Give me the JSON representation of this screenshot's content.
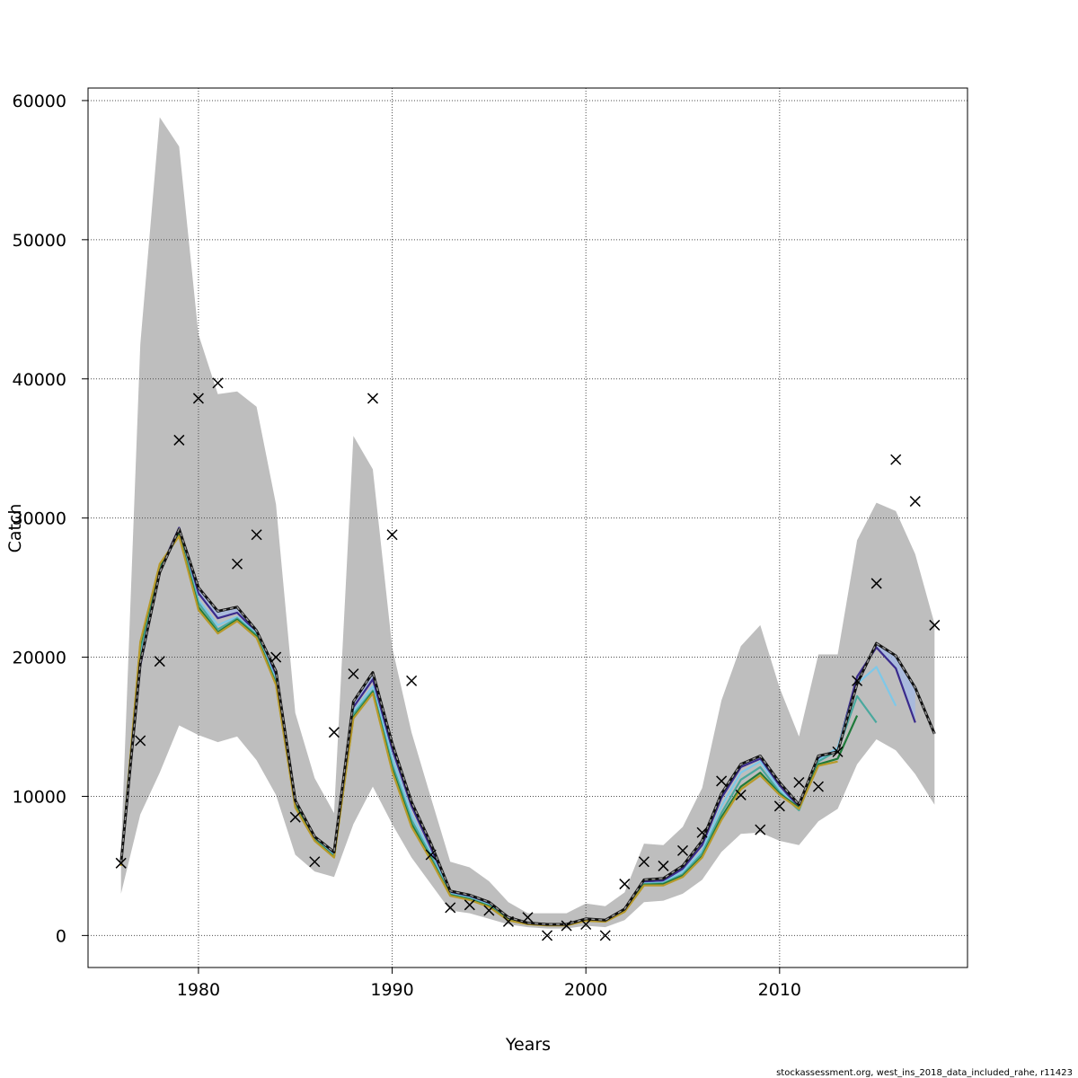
{
  "chart_data": {
    "type": "line",
    "xlabel": "Years",
    "ylabel": "Catch",
    "xlim": [
      1974.3,
      2019.7
    ],
    "ylim": [
      -2300,
      60900
    ],
    "x_ticks": [
      1980,
      1990,
      2000,
      2010
    ],
    "y_ticks": [
      0,
      10000,
      20000,
      30000,
      40000,
      50000,
      60000
    ],
    "x_tick_labels": [
      "1980",
      "1990",
      "2000",
      "2010"
    ],
    "y_tick_labels": [
      "0",
      "10000",
      "20000",
      "30000",
      "40000",
      "50000",
      "60000"
    ],
    "grid": true,
    "footer": "stockassessment.org, west_ins_2018_data_included_rahe, r11423",
    "colors": {
      "band": "#bebebe",
      "grid": "#4d4d4d",
      "observed_marker": "#000000",
      "fit_dashed": "#000000",
      "retro_band": "#9fb8e8"
    },
    "confidence_band": {
      "x": [
        1976,
        1977,
        1978,
        1979,
        1980,
        1981,
        1982,
        1983,
        1984,
        1985,
        1986,
        1987,
        1988,
        1989,
        1990,
        1991,
        1992,
        1993,
        1994,
        1995,
        1996,
        1997,
        1998,
        1999,
        2000,
        2001,
        2002,
        2003,
        2004,
        2005,
        2006,
        2007,
        2008,
        2009,
        2010,
        2011,
        2012,
        2013,
        2014,
        2015,
        2016,
        2017,
        2018
      ],
      "lower": [
        3000,
        8700,
        11700,
        15100,
        14400,
        13900,
        14300,
        12600,
        10100,
        5800,
        4600,
        4200,
        8000,
        10700,
        8000,
        5600,
        3700,
        1800,
        1600,
        1200,
        800,
        600,
        500,
        500,
        700,
        600,
        1100,
        2400,
        2500,
        3000,
        4000,
        6000,
        7300,
        7400,
        6800,
        6500,
        8200,
        9100,
        12300,
        14100,
        13300,
        11600,
        9400
      ],
      "upper": [
        6000,
        42500,
        58800,
        56700,
        43200,
        38900,
        39100,
        38000,
        31000,
        16000,
        11300,
        8800,
        35900,
        33500,
        20700,
        14600,
        9900,
        5300,
        4900,
        3900,
        2400,
        1600,
        1600,
        1600,
        2300,
        2100,
        3100,
        6600,
        6500,
        7800,
        10600,
        16900,
        20800,
        22300,
        17800,
        14300,
        20200,
        20200,
        28400,
        31100,
        30500,
        27400,
        22400
      ]
    },
    "series": [
      {
        "color": "#111111",
        "dashed": true,
        "x": [
          1976,
          1977,
          1978,
          1979,
          1980,
          1981,
          1982,
          1983,
          1984,
          1985,
          1986,
          1987,
          1988,
          1989,
          1990,
          1991,
          1992,
          1993,
          1994,
          1995,
          1996,
          1997,
          1998,
          1999,
          2000,
          2001,
          2002,
          2003,
          2004,
          2005,
          2006,
          2007,
          2008,
          2009,
          2010,
          2011,
          2012,
          2013,
          2014,
          2015,
          2016,
          2017,
          2018
        ],
        "values": [
          5200,
          19600,
          26100,
          29200,
          25000,
          23300,
          23600,
          21900,
          19000,
          9700,
          7100,
          6000,
          16800,
          18900,
          13800,
          9600,
          6600,
          3200,
          2900,
          2400,
          1300,
          900,
          800,
          800,
          1200,
          1100,
          1900,
          4000,
          4100,
          5000,
          6800,
          10200,
          12300,
          12900,
          11000,
          9400,
          12900,
          13200,
          18100,
          21000,
          20100,
          17800,
          14500
        ]
      },
      {
        "color": "#3a2a8c",
        "dashed": false,
        "x": [
          1976,
          1977,
          1978,
          1979,
          1980,
          1981,
          1982,
          1983,
          1984,
          1985,
          1986,
          1987,
          1988,
          1989,
          1990,
          1991,
          1992,
          1993,
          1994,
          1995,
          1996,
          1997,
          1998,
          1999,
          2000,
          2001,
          2002,
          2003,
          2004,
          2005,
          2006,
          2007,
          2008,
          2009,
          2010,
          2011,
          2012,
          2013,
          2014,
          2015,
          2016,
          2017
        ],
        "values": [
          5150,
          19400,
          26200,
          29300,
          24600,
          22800,
          23200,
          21800,
          18700,
          9600,
          7000,
          5800,
          16400,
          18400,
          13400,
          9300,
          6300,
          3100,
          2800,
          2300,
          1200,
          880,
          780,
          780,
          1150,
          1080,
          1850,
          3850,
          3950,
          4800,
          6500,
          9900,
          12100,
          12700,
          10800,
          9200,
          12700,
          13400,
          18600,
          20700,
          19200,
          15300
        ]
      },
      {
        "color": "#7ec8e8",
        "dashed": false,
        "x": [
          1976,
          1977,
          1978,
          1979,
          1980,
          1981,
          1982,
          1983,
          1984,
          1985,
          1986,
          1987,
          1988,
          1989,
          1990,
          1991,
          1992,
          1993,
          1994,
          1995,
          1996,
          1997,
          1998,
          1999,
          2000,
          2001,
          2002,
          2003,
          2004,
          2005,
          2006,
          2007,
          2008,
          2009,
          2010,
          2011,
          2012,
          2013,
          2014,
          2015,
          2016
        ],
        "values": [
          5100,
          20100,
          26400,
          28900,
          24100,
          22300,
          22900,
          21700,
          18400,
          9500,
          6950,
          5750,
          16100,
          17900,
          12800,
          8700,
          5900,
          3000,
          2700,
          2200,
          1150,
          850,
          760,
          760,
          1120,
          1050,
          1800,
          3750,
          3800,
          4600,
          6100,
          9300,
          11700,
          12500,
          10500,
          9100,
          12600,
          13500,
          18100,
          19300,
          16500
        ]
      },
      {
        "color": "#4aa89e",
        "dashed": false,
        "x": [
          1976,
          1977,
          1978,
          1979,
          1980,
          1981,
          1982,
          1983,
          1984,
          1985,
          1986,
          1987,
          1988,
          1989,
          1990,
          1991,
          1992,
          1993,
          1994,
          1995,
          1996,
          1997,
          1998,
          1999,
          2000,
          2001,
          2002,
          2003,
          2004,
          2005,
          2006,
          2007,
          2008,
          2009,
          2010,
          2011,
          2012,
          2013,
          2014,
          2015
        ],
        "values": [
          5100,
          20600,
          26500,
          28800,
          23900,
          22000,
          22800,
          21600,
          18200,
          9400,
          6900,
          5700,
          15900,
          17600,
          12300,
          8300,
          5700,
          2950,
          2650,
          2150,
          1120,
          830,
          750,
          750,
          1100,
          1030,
          1760,
          3700,
          3750,
          4400,
          5900,
          8800,
          11200,
          12100,
          10300,
          9000,
          12500,
          13300,
          17200,
          15300
        ]
      },
      {
        "color": "#1f7a3a",
        "dashed": false,
        "x": [
          1976,
          1977,
          1978,
          1979,
          1980,
          1981,
          1982,
          1983,
          1984,
          1985,
          1986,
          1987,
          1988,
          1989,
          1990,
          1991,
          1992,
          1993,
          1994,
          1995,
          1996,
          1997,
          1998,
          1999,
          2000,
          2001,
          2002,
          2003,
          2004,
          2005,
          2006,
          2007,
          2008,
          2009,
          2010,
          2011,
          2012,
          2013,
          2014
        ],
        "values": [
          5050,
          20900,
          26600,
          28800,
          23600,
          21800,
          22700,
          21500,
          18100,
          9300,
          6850,
          5650,
          15700,
          17500,
          12000,
          8000,
          5500,
          2900,
          2600,
          2100,
          1100,
          820,
          740,
          740,
          1080,
          1010,
          1730,
          3650,
          3700,
          4300,
          5700,
          8500,
          10700,
          11700,
          10200,
          9200,
          12300,
          12700,
          15800
        ]
      },
      {
        "color": "#b89a2a",
        "dashed": false,
        "x": [
          1976,
          1977,
          1978,
          1979,
          1980,
          1981,
          1982,
          1983,
          1984,
          1985,
          1986,
          1987,
          1988,
          1989,
          1990,
          1991,
          1992,
          1993,
          1994,
          1995,
          1996,
          1997,
          1998,
          1999,
          2000,
          2001,
          2002,
          2003,
          2004,
          2005,
          2006,
          2007,
          2008,
          2009,
          2010,
          2011,
          2012,
          2013
        ],
        "values": [
          5000,
          21100,
          26700,
          28700,
          23400,
          21700,
          22600,
          21400,
          18000,
          9200,
          6800,
          5600,
          15600,
          17400,
          11800,
          7800,
          5400,
          2850,
          2550,
          2050,
          1080,
          810,
          730,
          730,
          1060,
          990,
          1700,
          3600,
          3600,
          4200,
          5600,
          8300,
          10500,
          11500,
          10100,
          9100,
          12200,
          12500
        ]
      }
    ],
    "observed": {
      "x": [
        1976,
        1977,
        1978,
        1979,
        1980,
        1981,
        1982,
        1983,
        1984,
        1985,
        1986,
        1987,
        1988,
        1989,
        1990,
        1991,
        1992,
        1993,
        1994,
        1995,
        1996,
        1997,
        1998,
        1999,
        2000,
        2001,
        2002,
        2003,
        2004,
        2005,
        2006,
        2007,
        2008,
        2009,
        2010,
        2011,
        2012,
        2013,
        2014,
        2015,
        2016,
        2017,
        2018
      ],
      "y": [
        5200,
        14000,
        19700,
        35600,
        38600,
        39700,
        26700,
        28800,
        20000,
        8500,
        5300,
        14600,
        18800,
        38600,
        28800,
        18300,
        5800,
        2000,
        2200,
        1800,
        1000,
        1300,
        0,
        700,
        800,
        0,
        3700,
        5300,
        5000,
        6100,
        7400,
        11100,
        10100,
        7600,
        9300,
        11000,
        10700,
        13200,
        18300,
        25300,
        34200,
        31200,
        22300
      ]
    }
  }
}
